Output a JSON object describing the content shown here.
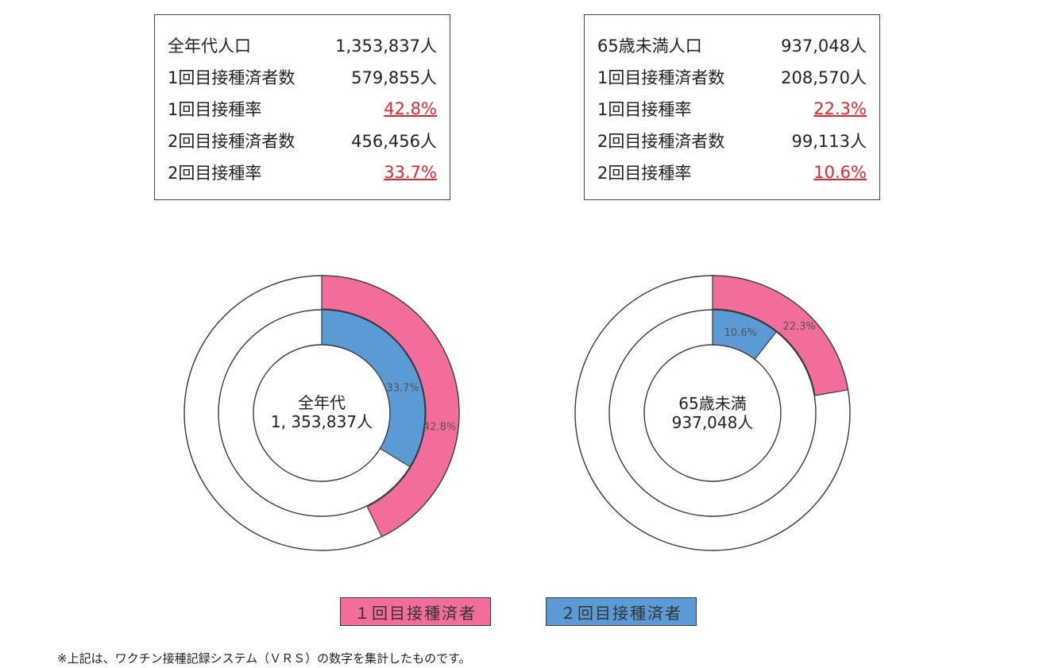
{
  "left_stats": {
    "rows": [
      {
        "label": "全年代人口",
        "value": "1,353,837人",
        "is_rate": false
      },
      {
        "label": "1回目接種済者数",
        "value": "579,855人",
        "is_rate": false
      },
      {
        "label": "1回目接種率",
        "value": "42.8%",
        "is_rate": true
      },
      {
        "label": "2回目接種済者数",
        "value": "456,456人",
        "is_rate": false
      },
      {
        "label": "2回目接種率",
        "value": "33.7%",
        "is_rate": true
      }
    ]
  },
  "right_stats": {
    "rows": [
      {
        "label": "65歳未満人口",
        "value": "937,048人",
        "is_rate": false
      },
      {
        "label": "1回目接種済者数",
        "value": "208,570人",
        "is_rate": false
      },
      {
        "label": "1回目接種率",
        "value": "22.3%",
        "is_rate": true
      },
      {
        "label": "2回目接種済者数",
        "value": "99,113人",
        "is_rate": false
      },
      {
        "label": "2回目接種率",
        "value": "10.6%",
        "is_rate": true
      }
    ]
  },
  "colors": {
    "first_dose": "#f26d9b",
    "second_dose": "#5b9bd5",
    "outline": "#3a3a3a",
    "rate_text": "#e3262e"
  },
  "chart_data": [
    {
      "type": "pie",
      "variant": "nested-donut",
      "center_label": [
        "全年代",
        "1, 353,837人"
      ],
      "series": [
        {
          "name": "1回目接種済者",
          "ring": "outer",
          "value": 42.8,
          "label": "42.8%"
        },
        {
          "name": "2回目接種済者",
          "ring": "inner",
          "value": 33.7,
          "label": "33.7%"
        }
      ]
    },
    {
      "type": "pie",
      "variant": "nested-donut",
      "center_label": [
        "65歳未満",
        "937,048人"
      ],
      "series": [
        {
          "name": "1回目接種済者",
          "ring": "outer",
          "value": 22.3,
          "label": "22.3%"
        },
        {
          "name": "2回目接種済者",
          "ring": "inner",
          "value": 10.6,
          "label": "10.6%"
        }
      ]
    }
  ],
  "legend": [
    {
      "label": "１回目接種済者",
      "color": "#f26d9b"
    },
    {
      "label": "２回目接種済者",
      "color": "#5b9bd5"
    }
  ],
  "footnote": "※上記は、ワクチン接種記録システム（ＶＲＳ）の数字を集計したものです。"
}
